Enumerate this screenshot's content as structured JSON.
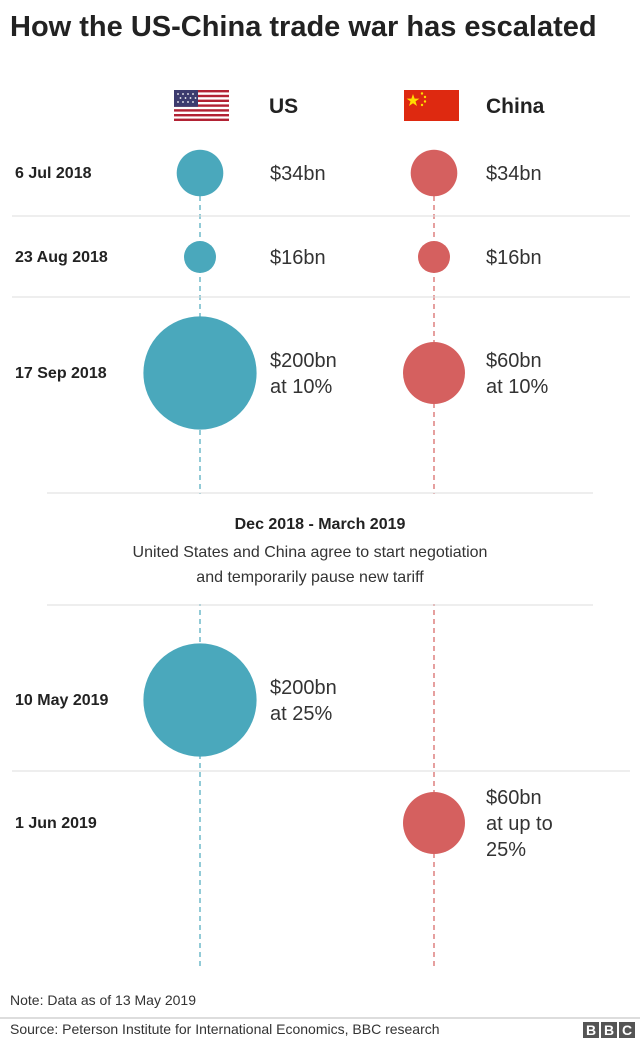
{
  "title": "How the US-China trade war has escalated",
  "columns": {
    "us": {
      "label": "US",
      "color": "#4aa8bc",
      "flag": "us-flag"
    },
    "china": {
      "label": "China",
      "color": "#d5605f",
      "flag": "china-flag"
    }
  },
  "pause": {
    "heading": "Dec 2018 - March 2019",
    "lines": [
      "United States and China agree to start negotiation",
      "and temporarily pause new tariff"
    ]
  },
  "note": "Note: Data as of 13 May 2019",
  "source": "Source: Peterson Institute for International Economics, BBC research",
  "logo": [
    "B",
    "B",
    "C"
  ],
  "chart_data": {
    "type": "bubble-timeline",
    "series": [
      {
        "name": "US",
        "key": "us"
      },
      {
        "name": "China",
        "key": "china"
      }
    ],
    "rows": [
      {
        "date": "6 Jul 2018",
        "us": {
          "value": 34,
          "label": [
            "$34bn"
          ]
        },
        "china": {
          "value": 34,
          "label": [
            "$34bn"
          ]
        }
      },
      {
        "date": "23 Aug 2018",
        "us": {
          "value": 16,
          "label": [
            "$16bn"
          ]
        },
        "china": {
          "value": 16,
          "label": [
            "$16bn"
          ]
        }
      },
      {
        "date": "17 Sep 2018",
        "us": {
          "value": 200,
          "label": [
            "$200bn",
            "at 10%"
          ]
        },
        "china": {
          "value": 60,
          "label": [
            "$60bn",
            "at 10%"
          ]
        }
      },
      {
        "date": "10 May 2019",
        "us": {
          "value": 200,
          "label": [
            "$200bn",
            "at 25%"
          ]
        },
        "china": null
      },
      {
        "date": "1 Jun 2019",
        "us": null,
        "china": {
          "value": 60,
          "label": [
            "$60bn",
            "at up to",
            "25%"
          ]
        }
      }
    ]
  }
}
